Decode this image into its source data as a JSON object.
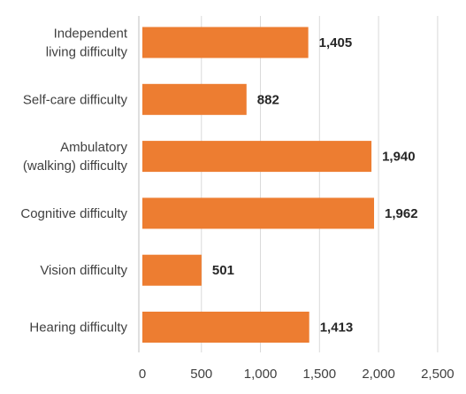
{
  "chart_data": {
    "type": "bar",
    "orientation": "horizontal",
    "categories": [
      [
        "Independent",
        "living difficulty"
      ],
      [
        "Self-care difficulty"
      ],
      [
        "Ambulatory",
        "(walking) difficulty"
      ],
      [
        "Cognitive difficulty"
      ],
      [
        "Vision difficulty"
      ],
      [
        "Hearing difficulty"
      ]
    ],
    "values": [
      1405,
      882,
      1940,
      1962,
      501,
      1413
    ],
    "value_labels": [
      "1,405",
      "882",
      "1,940",
      "1,962",
      "501",
      "1,413"
    ],
    "xticks": [
      0,
      500,
      1000,
      1500,
      2000,
      2500
    ],
    "xtick_labels": [
      "0",
      "500",
      "1,000",
      "1,500",
      "2,000",
      "2,500"
    ],
    "xlim": [
      0,
      2500
    ],
    "grid": true,
    "legend": "none",
    "colors": {
      "bar": "#ED7D31"
    }
  }
}
